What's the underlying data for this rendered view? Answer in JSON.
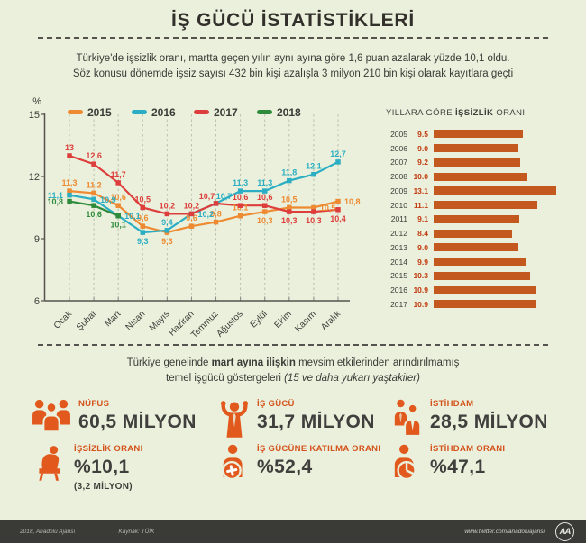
{
  "colors": {
    "background": "#EAF0DB",
    "accent_orange": "#E2591D",
    "bar_color": "#C4591F",
    "bar_value_color": "#C23A0F",
    "text_dark": "#3A3A37"
  },
  "header": {
    "title": "İŞ GÜCÜ İSTATİSTİKLERİ",
    "subtitle_line1": "Türkiye'de işsizlik oranı, martta geçen yılın aynı ayına göre 1,6 puan azalarak yüzde 10,1 oldu.",
    "subtitle_line2": "Söz konusu dönemde işsiz sayısı 432 bin kişi azalışla 3 milyon 210 bin kişi olarak kayıtlara geçti"
  },
  "chart_data": [
    {
      "type": "line",
      "unit": "%",
      "categories": [
        "Ocak",
        "Şubat",
        "Mart",
        "Nisan",
        "Mayıs",
        "Haziran",
        "Temmuz",
        "Ağustos",
        "Eylül",
        "Ekim",
        "Kasım",
        "Aralık"
      ],
      "ylim": [
        6,
        15
      ],
      "yticks": [
        15,
        12,
        9,
        6
      ],
      "grid": "vertical-dashed",
      "legend_position": "top",
      "series": [
        {
          "name": "2015",
          "color": "#EE8A31",
          "values": [
            11.3,
            11.2,
            10.6,
            9.6,
            9.3,
            9.6,
            9.8,
            10.1,
            10.3,
            10.5,
            10.5,
            10.8
          ],
          "labels": [
            "11,3",
            "11,2",
            "10,6",
            "9,6",
            "9,3",
            "9,6",
            "9,8",
            "10,1",
            "10,3",
            "10,5",
            "10,5",
            "10,8"
          ],
          "label_pos": [
            "above",
            "above",
            "above",
            "above",
            "below",
            "above",
            "above",
            "above",
            "below",
            "above",
            "right",
            "right"
          ]
        },
        {
          "name": "2016",
          "color": "#2BAEC3",
          "values": [
            11.1,
            10.9,
            10.1,
            9.3,
            9.4,
            10.2,
            10.7,
            11.3,
            11.3,
            11.8,
            12.1,
            12.7
          ],
          "labels": [
            "11,1",
            "10,9",
            "10,1",
            "9,3",
            "9,4",
            "10,2",
            "10,7",
            "11,3",
            "11,3",
            "11,8",
            "12,1",
            "12,7"
          ],
          "label_pos": [
            "left",
            "right",
            "right",
            "below",
            "above",
            "right",
            "above-right",
            "above",
            "above",
            "above",
            "above",
            "above"
          ]
        },
        {
          "name": "2017",
          "color": "#DD3E3C",
          "values": [
            13,
            12.6,
            11.7,
            10.5,
            10.2,
            10.2,
            10.7,
            10.6,
            10.6,
            10.3,
            10.3,
            10.4
          ],
          "labels": [
            "13",
            "12,6",
            "11,7",
            "10,5",
            "10,2",
            "10,2",
            "10,7",
            "10,6",
            "10,6",
            "10,3",
            "10,3",
            "10,4"
          ],
          "label_pos": [
            "above",
            "above",
            "above",
            "above",
            "above",
            "above",
            "above-left",
            "above",
            "above",
            "below",
            "below",
            "below"
          ]
        },
        {
          "name": "2018",
          "color": "#2F8B3C",
          "values": [
            10.8,
            10.6,
            10.1
          ],
          "labels": [
            "10,8",
            "10,6",
            "10,1"
          ],
          "label_pos": [
            "left",
            "below",
            "below"
          ]
        }
      ]
    },
    {
      "type": "bar",
      "orientation": "horizontal",
      "title_pre": "YILLARA GÖRE ",
      "title_bold": "İŞSİZLİK",
      "title_post": " ORANI",
      "categories": [
        "2005",
        "2006",
        "2007",
        "2008",
        "2009",
        "2010",
        "2011",
        "2012",
        "2013",
        "2014",
        "2015",
        "2016",
        "2017"
      ],
      "values": [
        9.5,
        9.0,
        9.2,
        10.0,
        13.1,
        11.1,
        9.1,
        8.4,
        9.0,
        9.9,
        10.3,
        10.9,
        10.9
      ],
      "labels": [
        "9.5",
        "9.0",
        "9.2",
        "10.0",
        "13.1",
        "11.1",
        "9.1",
        "8.4",
        "9.0",
        "9.9",
        "10.3",
        "10.9",
        "10.9"
      ],
      "bar_color": "#C4591F",
      "value_color": "#C23A0F"
    }
  ],
  "mid": {
    "line1_pre": "Türkiye genelinde ",
    "line1_bold": "mart ayına ilişkin",
    "line1_post": " mevsim etkilerinden arındırılmamış",
    "line2_pre": "temel işgücü göstergeleri ",
    "line2_italic": "(15 ve daha yukarı yaştakiler)"
  },
  "stats": [
    {
      "icon": "people-group-icon",
      "label": "NÜFUS",
      "value": "60,5 MİLYON"
    },
    {
      "icon": "flexing-person-icon",
      "label": "İŞ GÜCÜ",
      "value": "31,7 MİLYON"
    },
    {
      "icon": "two-people-icon",
      "label": "İSTİHDAM",
      "value": "28,5 MİLYON"
    },
    {
      "icon": "sitting-person-icon",
      "label": "İŞSİZLİK ORANI",
      "value": "%10,1",
      "sub": "(3,2 MİLYON)"
    },
    {
      "icon": "person-plus-icon",
      "label": "İŞ GÜCÜNE KATILMA ORANI",
      "value": "%52,4"
    },
    {
      "icon": "person-pie-icon",
      "label": "İSTİHDAM ORANI",
      "value": "%47,1"
    }
  ],
  "footer": {
    "credit": "2018, Anadolu Ajansı",
    "source": "Kaynak: TÜİK",
    "url": "www.twitter.com/anadoluajansi",
    "logo_text": "AA"
  }
}
